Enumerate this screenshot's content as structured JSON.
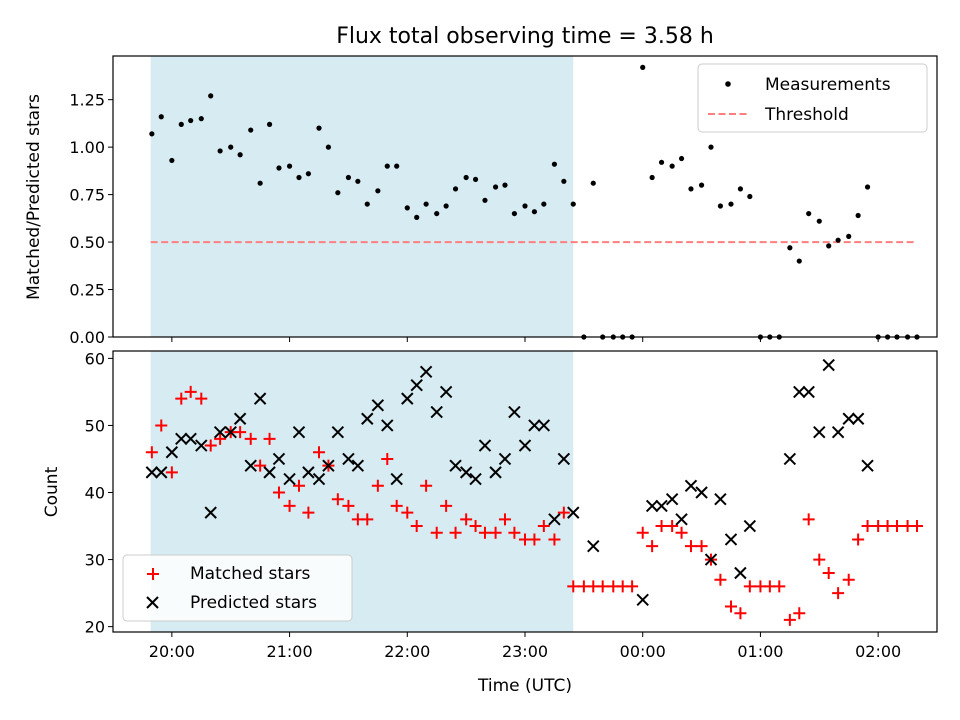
{
  "figure_title": "Flux total observing time = 3.58 h",
  "x_axis_label": "Time (UTC)",
  "x_tick_labels": [
    "20:00",
    "21:00",
    "22:00",
    "23:00",
    "00:00",
    "01:00",
    "02:00"
  ],
  "colors": {
    "highlight": "#add8e6",
    "measurements": "#000000",
    "threshold": "#ff7f7f",
    "matched": "#ff0000",
    "predicted": "#000000"
  },
  "chart_data": [
    {
      "type": "scatter",
      "title": "Flux total observing time = 3.58 h",
      "xlabel": "",
      "ylabel": "Matched/Predicted stars",
      "x_unit": "hours after 20:00 UTC",
      "xlim": [
        -0.5,
        6.5
      ],
      "ylim": [
        0,
        1.48
      ],
      "y_ticks": [
        0.0,
        0.25,
        0.5,
        0.75,
        1.0,
        1.25
      ],
      "y_tick_labels": [
        "0.00",
        "0.25",
        "0.50",
        "0.75",
        "1.00",
        "1.25"
      ],
      "legend_position": "top-right",
      "grid": false,
      "shaded_interval": [
        -0.18,
        3.41
      ],
      "series": [
        {
          "name": "Measurements",
          "x": [
            -0.17,
            -0.09,
            0.0,
            0.08,
            0.16,
            0.25,
            0.33,
            0.41,
            0.5,
            0.58,
            0.67,
            0.75,
            0.83,
            0.91,
            1.0,
            1.08,
            1.16,
            1.25,
            1.33,
            1.41,
            1.5,
            1.58,
            1.66,
            1.75,
            1.83,
            1.91,
            2.0,
            2.08,
            2.16,
            2.25,
            2.33,
            2.41,
            2.5,
            2.58,
            2.66,
            2.75,
            2.83,
            2.91,
            3.0,
            3.08,
            3.16,
            3.25,
            3.33,
            3.41,
            3.5,
            3.58,
            3.66,
            3.75,
            3.83,
            3.91,
            4.0,
            4.08,
            4.16,
            4.25,
            4.33,
            4.41,
            4.5,
            4.58,
            4.66,
            4.75,
            4.83,
            4.91,
            5.0,
            5.08,
            5.16,
            5.25,
            5.33,
            5.41,
            5.5,
            5.58,
            5.66,
            5.75,
            5.83,
            5.91,
            6.0,
            6.08,
            6.16,
            6.25,
            6.33
          ],
          "y": [
            1.07,
            1.16,
            0.93,
            1.12,
            1.14,
            1.15,
            1.27,
            0.98,
            1.0,
            0.96,
            1.09,
            0.81,
            1.12,
            0.89,
            0.9,
            0.84,
            0.86,
            1.1,
            1.0,
            0.76,
            0.84,
            0.82,
            0.7,
            0.77,
            0.9,
            0.9,
            0.68,
            0.63,
            0.7,
            0.65,
            0.69,
            0.78,
            0.84,
            0.83,
            0.72,
            0.79,
            0.8,
            0.65,
            0.69,
            0.66,
            0.7,
            0.91,
            0.82,
            0.7,
            0.0,
            0.81,
            0.0,
            0.0,
            0.0,
            0.0,
            1.42,
            0.84,
            0.92,
            0.9,
            0.94,
            0.78,
            0.8,
            1.0,
            0.69,
            0.7,
            0.78,
            0.74,
            0.0,
            0.0,
            0.0,
            0.47,
            0.4,
            0.65,
            0.61,
            0.48,
            0.51,
            0.53,
            0.64,
            0.79,
            0.0,
            0.0,
            0.0,
            0.0,
            0.0
          ]
        },
        {
          "name": "Threshold",
          "x": [
            -0.18,
            6.33
          ],
          "y": [
            0.5,
            0.5
          ]
        }
      ]
    },
    {
      "type": "scatter",
      "title": "",
      "xlabel": "Time (UTC)",
      "ylabel": "Count",
      "x_unit": "hours after 20:00 UTC",
      "xlim": [
        -0.5,
        6.5
      ],
      "ylim": [
        19.2,
        61.1
      ],
      "y_ticks": [
        20,
        30,
        40,
        50,
        60
      ],
      "y_tick_labels": [
        "20",
        "30",
        "40",
        "50",
        "60"
      ],
      "legend_position": "bottom-left",
      "grid": false,
      "shaded_interval": [
        -0.18,
        3.41
      ],
      "series": [
        {
          "name": "Matched stars",
          "x": [
            -0.17,
            -0.09,
            0.0,
            0.08,
            0.16,
            0.25,
            0.33,
            0.41,
            0.5,
            0.58,
            0.67,
            0.75,
            0.83,
            0.91,
            1.0,
            1.08,
            1.16,
            1.25,
            1.33,
            1.41,
            1.5,
            1.58,
            1.66,
            1.75,
            1.83,
            1.91,
            2.0,
            2.08,
            2.16,
            2.25,
            2.33,
            2.41,
            2.5,
            2.58,
            2.66,
            2.75,
            2.83,
            2.91,
            3.0,
            3.08,
            3.16,
            3.25,
            3.33,
            3.41,
            3.5,
            3.58,
            3.66,
            3.75,
            3.83,
            3.91,
            4.0,
            4.08,
            4.16,
            4.25,
            4.33,
            4.41,
            4.5,
            4.58,
            4.66,
            4.75,
            4.83,
            4.91,
            5.0,
            5.08,
            5.16,
            5.25,
            5.33,
            5.41,
            5.5,
            5.58,
            5.66,
            5.75,
            5.83,
            5.91,
            6.0,
            6.08,
            6.16,
            6.25,
            6.33
          ],
          "y": [
            46,
            50,
            43,
            54,
            55,
            54,
            47,
            48,
            49,
            49,
            48,
            44,
            48,
            40,
            38,
            41,
            37,
            46,
            44,
            39,
            38,
            36,
            36,
            41,
            45,
            38,
            37,
            35,
            41,
            34,
            38,
            34,
            36,
            35,
            34,
            34,
            36,
            34,
            33,
            33,
            35,
            33,
            37,
            26,
            26,
            26,
            26,
            26,
            26,
            26,
            34,
            32,
            35,
            35,
            34,
            32,
            32,
            30,
            27,
            23,
            22,
            26,
            26,
            26,
            26,
            21,
            22,
            36,
            30,
            28,
            25,
            27,
            33,
            35,
            35,
            35,
            35,
            35,
            35
          ]
        },
        {
          "name": "Predicted stars",
          "x": [
            -0.17,
            -0.09,
            0.0,
            0.08,
            0.16,
            0.25,
            0.33,
            0.41,
            0.5,
            0.58,
            0.67,
            0.75,
            0.83,
            0.91,
            1.0,
            1.08,
            1.16,
            1.25,
            1.33,
            1.41,
            1.5,
            1.58,
            1.66,
            1.75,
            1.83,
            1.91,
            2.0,
            2.08,
            2.16,
            2.25,
            2.33,
            2.41,
            2.5,
            2.58,
            2.66,
            2.75,
            2.83,
            2.91,
            3.0,
            3.08,
            3.16,
            3.25,
            3.33,
            3.41,
            3.58,
            4.0,
            4.08,
            4.16,
            4.25,
            4.33,
            4.41,
            4.5,
            4.58,
            4.66,
            4.75,
            4.83,
            4.91,
            5.25,
            5.33,
            5.41,
            5.5,
            5.58,
            5.66,
            5.75,
            5.83,
            5.91
          ],
          "y": [
            43,
            43,
            46,
            48,
            48,
            47,
            37,
            49,
            49,
            51,
            44,
            54,
            43,
            45,
            42,
            49,
            43,
            42,
            44,
            49,
            45,
            44,
            51,
            53,
            50,
            42,
            54,
            56,
            58,
            52,
            55,
            44,
            43,
            42,
            47,
            43,
            45,
            52,
            47,
            50,
            50,
            36,
            45,
            37,
            32,
            24,
            38,
            38,
            39,
            36,
            41,
            40,
            30,
            39,
            33,
            28,
            35,
            45,
            55,
            55,
            49,
            59,
            49,
            51,
            51,
            44
          ]
        }
      ]
    }
  ]
}
